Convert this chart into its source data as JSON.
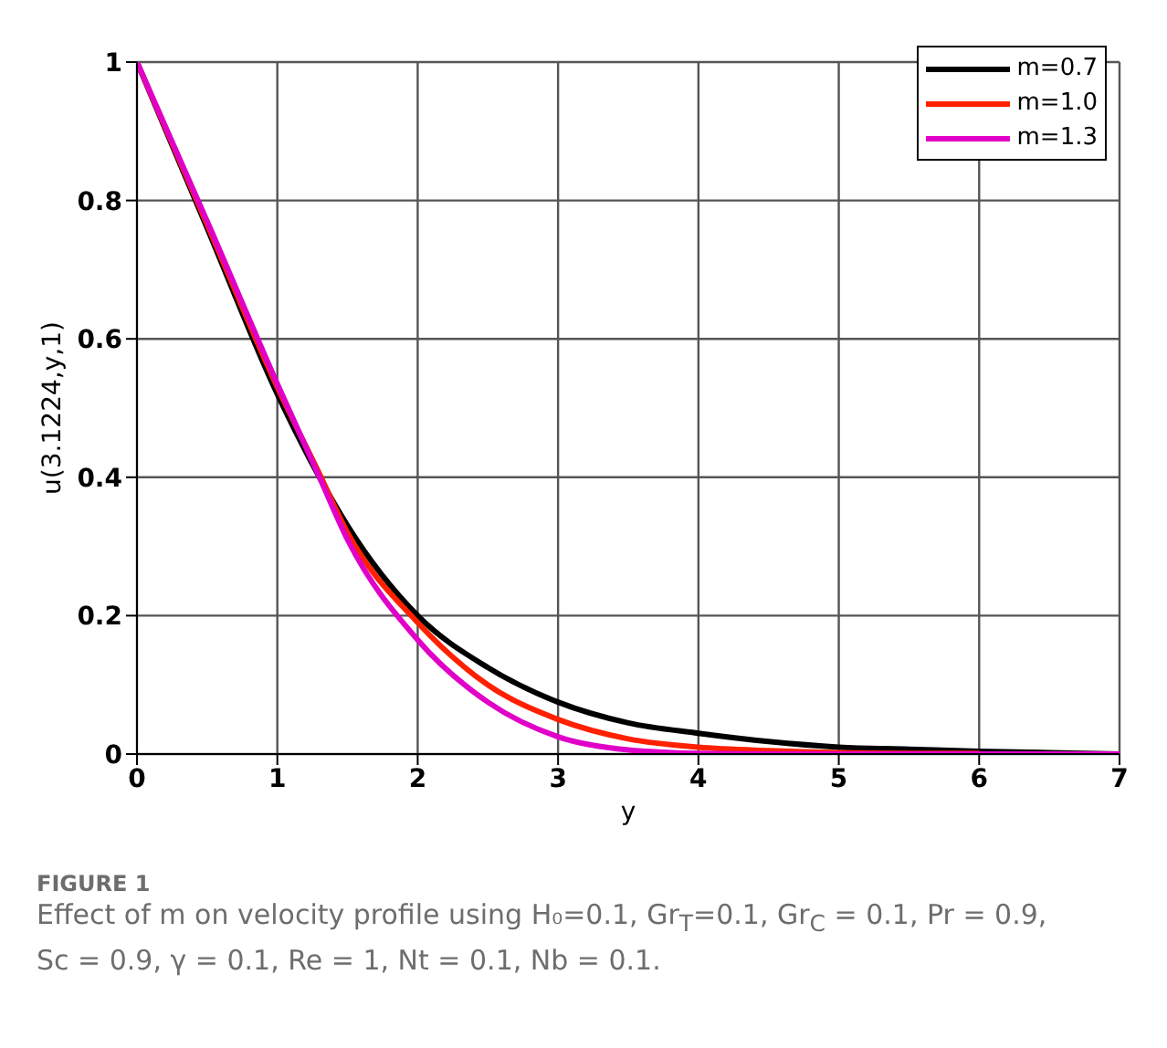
{
  "chart_data": {
    "type": "line",
    "xlabel": "y",
    "ylabel": "u(3.1224,y,1)",
    "annotations": [
      "FIGURE 1",
      "Effect of m on velocity profile using H₀=0.1, Gr$_{T}$=0.1, Gr$_{C}$ = 0.1, Pr = 0.9, Sc = 0.9, γ = 0.1, Re = 1, Nt = 0.1, Nb = 0.1."
    ],
    "x": [
      0,
      0.5,
      1,
      1.3,
      1.5,
      2,
      2.5,
      3,
      3.5,
      4,
      4.5,
      5,
      5.5,
      6,
      6.5,
      7
    ],
    "series": [
      {
        "name": "m=0.7",
        "color": "#000000",
        "values": [
          1,
          0.76,
          0.52,
          0.4,
          0.33,
          0.2,
          0.125,
          0.075,
          0.045,
          0.03,
          0.018,
          0.01,
          0.007,
          0.004,
          0.002,
          0
        ]
      },
      {
        "name": "m=1.0",
        "color": "#ff2000",
        "values": [
          1,
          0.765,
          0.53,
          0.405,
          0.32,
          0.19,
          0.1,
          0.05,
          0.022,
          0.01,
          0.005,
          0.002,
          0.001,
          0.001,
          null,
          null
        ]
      },
      {
        "name": "m=1.3",
        "color": "#e000c8",
        "values": [
          1,
          0.77,
          0.535,
          0.4,
          0.31,
          0.165,
          0.075,
          0.025,
          0.006,
          0.001,
          0,
          0,
          0,
          0,
          0,
          0
        ]
      }
    ],
    "xlim": [
      0,
      7
    ],
    "xticks": [
      0,
      1,
      2,
      3,
      4,
      5,
      6,
      7
    ],
    "ylim": [
      0,
      1
    ],
    "yticks": [
      0,
      0.2,
      0.4,
      0.6,
      0.8,
      1
    ],
    "grid": true,
    "legend": "top right",
    "marker": "none",
    "line_style": "solid"
  }
}
